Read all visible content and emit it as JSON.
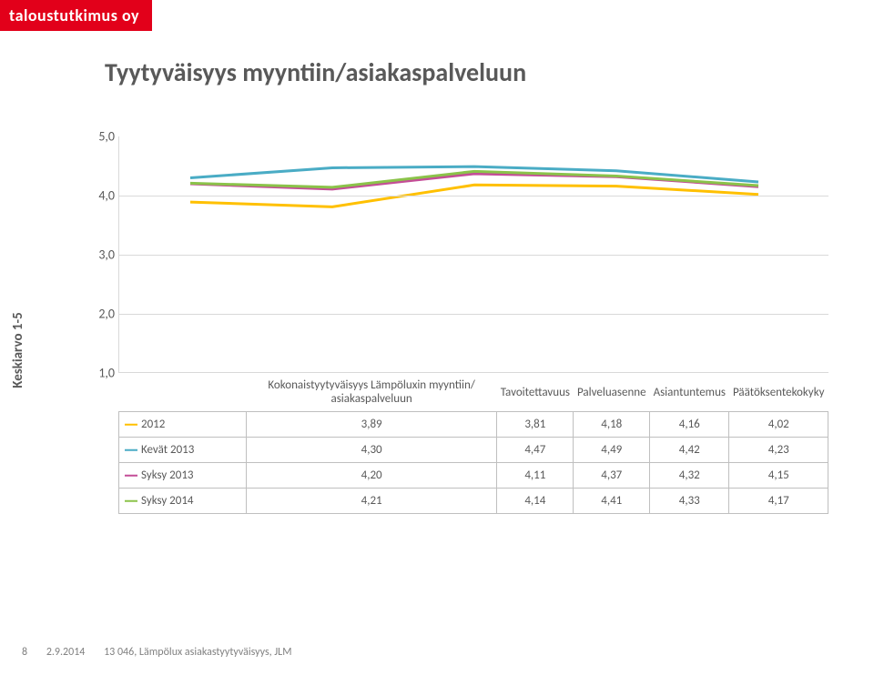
{
  "brand": "taloustutkimus oy",
  "title": "Tyytyväisyys myyntiin/asiakaspalveluun",
  "y_axis_label": "Keskiarvo 1-5",
  "chart": {
    "type": "line",
    "ylim": [
      1.0,
      5.0
    ],
    "ytick_step": 1.0,
    "yticks": [
      "5,0",
      "4,0",
      "3,0",
      "2,0",
      "1,0"
    ],
    "grid_color": "#d9d9d9",
    "background_color": "#ffffff",
    "line_width": 3,
    "categories": [
      "Kokonaistyytyväisyys Lämpöluxin myyntiin/ asiakaspalveluun",
      "Tavoitettavuus",
      "Palveluasenne",
      "Asiantuntemus",
      "Päätöksentekokyky"
    ],
    "series": [
      {
        "name": "2012",
        "color": "#ffc000",
        "values": [
          3.89,
          3.81,
          4.18,
          4.16,
          4.02
        ],
        "labels": [
          "3,89",
          "3,81",
          "4,18",
          "4,16",
          "4,02"
        ]
      },
      {
        "name": "Kevät 2013",
        "color": "#4aacc5",
        "values": [
          4.3,
          4.47,
          4.49,
          4.42,
          4.23
        ],
        "labels": [
          "4,30",
          "4,47",
          "4,49",
          "4,42",
          "4,23"
        ]
      },
      {
        "name": "Syksy 2013",
        "color": "#c44d97",
        "values": [
          4.2,
          4.11,
          4.37,
          4.32,
          4.15
        ],
        "labels": [
          "4,20",
          "4,11",
          "4,37",
          "4,32",
          "4,15"
        ]
      },
      {
        "name": "Syksy 2014",
        "color": "#8bc34a",
        "values": [
          4.21,
          4.14,
          4.41,
          4.33,
          4.17
        ],
        "labels": [
          "4,21",
          "4,14",
          "4,41",
          "4,33",
          "4,17"
        ]
      }
    ]
  },
  "footer": {
    "page": "8",
    "date": "2.9.2014",
    "ref": "13 046, Lämpölux asiakastyytyväisyys, JLM"
  }
}
